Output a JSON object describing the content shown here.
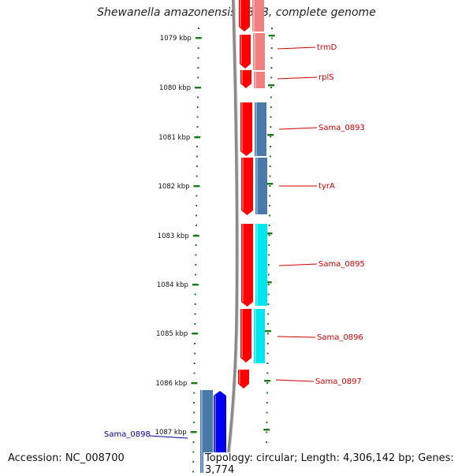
{
  "title": "Shewanella amazonensis SB2B, complete genome",
  "accession": "Accession: NC_008700",
  "summary": "Topology: circular; Length: 4,306,142 bp; Genes: 3,774",
  "colors": {
    "backbone": "#8a8a8a",
    "ticks": "#1a7a1a",
    "gene_forward": "#ff0000",
    "gene_forward_light": "#f08080",
    "label_red": "#cc0000",
    "label_blue": "#000099",
    "steel_blue": "#4a7aaa",
    "cyan": "#00e5ee",
    "blue": "#0000ee"
  },
  "ticks": [
    "1079 kbp",
    "1080 kbp",
    "1081 kbp",
    "1082 kbp",
    "1083 kbp",
    "1084 kbp",
    "1085 kbp",
    "1086 kbp",
    "1087 kbp"
  ],
  "genes": [
    {
      "label": "trmD"
    },
    {
      "label": "rplS"
    },
    {
      "label": "Sama_0893"
    },
    {
      "label": "tyrA"
    },
    {
      "label": "Sama_0895"
    },
    {
      "label": "Sama_0896"
    },
    {
      "label": "Sama_0897"
    },
    {
      "label": "Sama_0898"
    }
  ]
}
